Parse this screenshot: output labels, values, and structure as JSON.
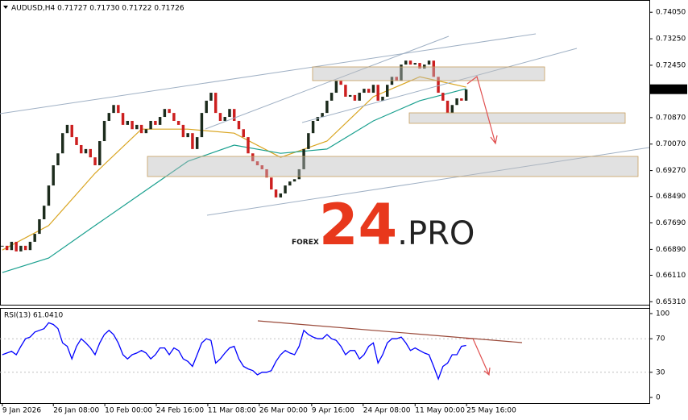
{
  "chart_data": [
    {
      "type": "candlestick",
      "title": "AUDUSD,H4  0.71727 0.71730 0.71722 0.71726",
      "values": [
        0.67,
        0.6687,
        0.6712,
        0.6683,
        0.67,
        0.6687,
        0.6712,
        0.6736,
        0.678,
        0.6821,
        0.6882,
        0.6943,
        0.6979,
        0.704,
        0.7065,
        0.7028,
        0.7004,
        0.6979,
        0.6992,
        0.6967,
        0.6943,
        0.7016,
        0.7077,
        0.7101,
        0.7125,
        0.7101,
        0.7065,
        0.7077,
        0.7052,
        0.7065,
        0.704,
        0.7052,
        0.7077,
        0.7065,
        0.7089,
        0.7113,
        0.7101,
        0.7077,
        0.7065,
        0.7028,
        0.704,
        0.6992,
        0.7028,
        0.7101,
        0.7138,
        0.7162,
        0.7101,
        0.7077,
        0.7089,
        0.7113,
        0.7077,
        0.7052,
        0.7028,
        0.6979,
        0.6955,
        0.6943,
        0.6931,
        0.6906,
        0.687,
        0.6846,
        0.6858,
        0.6882,
        0.6894,
        0.6901,
        0.6931,
        0.6992,
        0.704,
        0.7077,
        0.7089,
        0.7101,
        0.7138,
        0.7162,
        0.7198,
        0.7186,
        0.715,
        0.7155,
        0.7138,
        0.7162,
        0.7174,
        0.7162,
        0.7186,
        0.7138,
        0.715,
        0.7186,
        0.721,
        0.7198,
        0.7247,
        0.7259,
        0.7247,
        0.7252,
        0.7235,
        0.7247,
        0.7259,
        0.721,
        0.7162,
        0.7138,
        0.7101,
        0.7125,
        0.7145,
        0.7138,
        0.7172
      ],
      "up_color": "#1c2b1c",
      "down_color": "#cc1f1f",
      "xlim": [
        0,
        140
      ],
      "ylim": [
        0.6522,
        0.7442
      ],
      "yticks": [
        {
          "value": 0.7405,
          "label": "0.74050"
        },
        {
          "value": 0.7325,
          "label": "0.73250"
        },
        {
          "value": 0.7245,
          "label": "0.72450"
        },
        {
          "value": 0.7087,
          "label": "0.70870"
        },
        {
          "value": 0.7007,
          "label": "0.70070"
        },
        {
          "value": 0.6927,
          "label": "0.69270"
        },
        {
          "value": 0.6849,
          "label": "0.68490"
        },
        {
          "value": 0.6769,
          "label": "0.67690"
        },
        {
          "value": 0.6689,
          "label": "0.66890"
        },
        {
          "value": 0.6611,
          "label": "0.66110"
        },
        {
          "value": 0.6531,
          "label": "0.65310"
        }
      ],
      "last_price": {
        "value": 0.71726,
        "label": "0.71726"
      },
      "lines": [
        {
          "color": "#d9a521",
          "x": [
            0.5,
            10.5,
            20.5,
            30.5,
            40.5,
            50.5,
            60.5,
            70.5,
            80.5,
            90.5,
            100.5
          ],
          "values": [
            0.6687,
            0.6761,
            0.6919,
            0.7052,
            0.7052,
            0.704,
            0.6967,
            0.7016,
            0.715,
            0.721,
            0.7179
          ]
        },
        {
          "color": "#1aa08f",
          "x": [
            0.5,
            10.5,
            20.5,
            30.5,
            40.5,
            50.5,
            60.5,
            70.5,
            80.5,
            90.5,
            100.5
          ],
          "values": [
            0.6619,
            0.6663,
            0.6761,
            0.6858,
            0.6955,
            0.7004,
            0.6979,
            0.6992,
            0.7077,
            0.7138,
            0.7174
          ]
        }
      ]
    },
    {
      "type": "line",
      "title": "RSI(13) 61.0410",
      "color": "#0000ff",
      "values": [
        51,
        53,
        55,
        51,
        61,
        70,
        72,
        78,
        80,
        82,
        89,
        87,
        82,
        65,
        61,
        46,
        61,
        70,
        65,
        59,
        51,
        65,
        75,
        80,
        75,
        65,
        51,
        46,
        51,
        53,
        56,
        53,
        46,
        51,
        59,
        59,
        51,
        59,
        56,
        46,
        43,
        37,
        51,
        65,
        70,
        68,
        41,
        46,
        53,
        59,
        61,
        46,
        37,
        34,
        32,
        27,
        30,
        30,
        32,
        43,
        51,
        56,
        53,
        51,
        61,
        80,
        75,
        72,
        70,
        70,
        75,
        70,
        68,
        61,
        51,
        56,
        56,
        46,
        51,
        61,
        65,
        41,
        51,
        65,
        70,
        70,
        72,
        65,
        56,
        59,
        56,
        53,
        51,
        37,
        22,
        37,
        41,
        51,
        51,
        61,
        62
      ],
      "xlim": [
        0,
        140
      ],
      "ylim": [
        -6.7,
        106.7
      ],
      "yticks": [
        0,
        30,
        70,
        100
      ],
      "xticks": [
        {
          "value": 0.5,
          "label": "9 Jan 2026"
        },
        {
          "value": 11.5,
          "label": "26 Jan 08:00"
        },
        {
          "value": 22.6,
          "label": "10 Feb 00:00"
        },
        {
          "value": 33.7,
          "label": "24 Feb 16:00"
        },
        {
          "value": 44.8,
          "label": "11 Mar 08:00"
        },
        {
          "value": 55.9,
          "label": "26 Mar 00:00"
        },
        {
          "value": 67.2,
          "label": "9 Apr 16:00"
        },
        {
          "value": 78.3,
          "label": "24 Apr 08:00"
        },
        {
          "value": 89.5,
          "label": "11 May 00:00"
        },
        {
          "value": 100.6,
          "label": "25 May 16:00"
        }
      ]
    }
  ],
  "watermark": [
    "FOREX",
    "24",
    ".PRO"
  ]
}
